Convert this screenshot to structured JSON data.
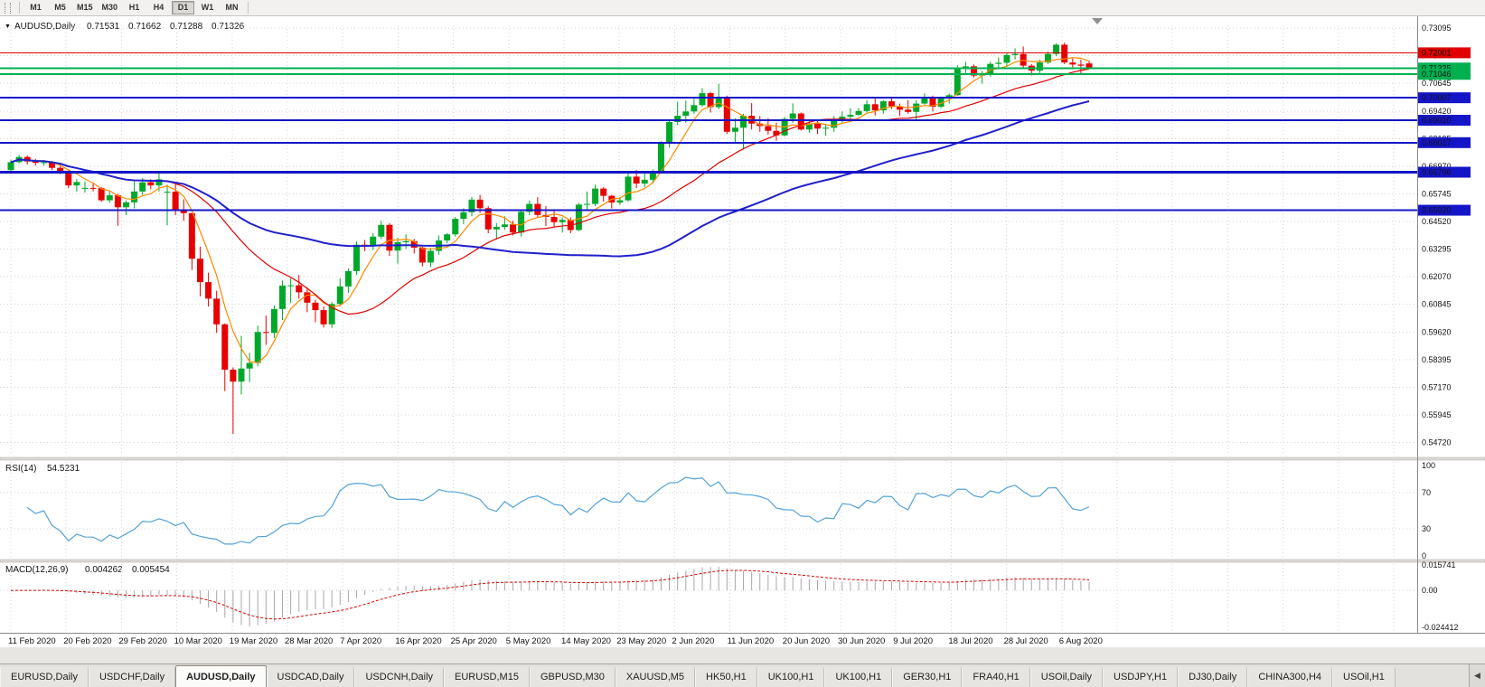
{
  "toolbar": {
    "periods": [
      "M1",
      "M5",
      "M15",
      "M30",
      "H1",
      "H4",
      "D1",
      "W1",
      "MN"
    ],
    "active_period": "D1"
  },
  "colors": {
    "bull": "#00a82a",
    "bear": "#e80000",
    "grid": "#d4d4d4",
    "rsi": "#53a2d9",
    "macd_hist": "#a8a8a8",
    "macd_signal": "#e00000"
  },
  "chart_data": {
    "type": "candlestick",
    "symbol": "AUDUSD",
    "timeframe": "Daily",
    "title": {
      "symbol": "AUDUSD,Daily",
      "open": "0.71531",
      "high": "0.71662",
      "low": "0.71288",
      "close": "0.71326"
    },
    "y_axis_labels": [
      "0.73095",
      "0.71870",
      "0.70645",
      "0.69420",
      "0.68195",
      "0.66970",
      "0.65745",
      "0.64520",
      "0.63295",
      "0.62070",
      "0.60845",
      "0.59620",
      "0.58395",
      "0.57170",
      "0.55945",
      "0.54720"
    ],
    "x_axis_labels": [
      "11 Feb 2020",
      "20 Feb 2020",
      "29 Feb 2020",
      "10 Mar 2020",
      "19 Mar 2020",
      "28 Mar 2020",
      "7 Apr 2020",
      "16 Apr 2020",
      "25 Apr 2020",
      "5 May 2020",
      "14 May 2020",
      "23 May 2020",
      "2 Jun 2020",
      "11 Jun 2020",
      "20 Jun 2020",
      "30 Jun 2020",
      "9 Jul 2020",
      "18 Jul 2020",
      "28 Jul 2020",
      "6 Aug 2020"
    ],
    "levels": [
      {
        "price": 0.72001,
        "label": "0.72001",
        "color": "#e00000",
        "width": 1
      },
      {
        "price": 0.71325,
        "label": "0.71325",
        "color": "#00b050",
        "width": 2
      },
      {
        "price": 0.71046,
        "label": "0.71046",
        "color": "#00b050",
        "width": 2
      },
      {
        "price": 0.70007,
        "label": "0.70007",
        "color": "#1515c8",
        "width": 2
      },
      {
        "price": 0.6901,
        "label": "0.69010",
        "color": "#1515c8",
        "width": 2
      },
      {
        "price": 0.68017,
        "label": "0.68017",
        "color": "#1515c8",
        "width": 2
      },
      {
        "price": 0.66706,
        "label": "0.66706",
        "color": "#1515c8",
        "width": 3
      },
      {
        "price": 0.6502,
        "label": "0.65020",
        "color": "#1515c8",
        "width": 2
      }
    ],
    "moving_averages": [
      {
        "period": 5,
        "color": "#ff8a00",
        "width": 1.2
      },
      {
        "period": 20,
        "color": "#e00000",
        "width": 1.2
      },
      {
        "period": 55,
        "color": "#2020cc",
        "width": 2
      }
    ],
    "candles": [
      [
        0.668,
        0.6725,
        0.667,
        0.6715
      ],
      [
        0.6715,
        0.6748,
        0.671,
        0.6738
      ],
      [
        0.6738,
        0.6745,
        0.6705,
        0.6718
      ],
      [
        0.6718,
        0.673,
        0.67,
        0.6712
      ],
      [
        0.6712,
        0.6725,
        0.67,
        0.6715
      ],
      [
        0.6715,
        0.672,
        0.668,
        0.669
      ],
      [
        0.669,
        0.67,
        0.6662,
        0.6673
      ],
      [
        0.6673,
        0.668,
        0.66,
        0.6612
      ],
      [
        0.6612,
        0.664,
        0.6585,
        0.6627
      ],
      [
        0.66,
        0.663,
        0.658,
        0.6601
      ],
      [
        0.6601,
        0.6625,
        0.6585,
        0.66
      ],
      [
        0.66,
        0.6605,
        0.654,
        0.6546
      ],
      [
        0.6546,
        0.659,
        0.6535,
        0.6568
      ],
      [
        0.6568,
        0.6575,
        0.6433,
        0.6515
      ],
      [
        0.6515,
        0.6545,
        0.648,
        0.6537
      ],
      [
        0.6537,
        0.663,
        0.651,
        0.6585
      ],
      [
        0.6585,
        0.6645,
        0.657,
        0.6626
      ],
      [
        0.6626,
        0.664,
        0.6595,
        0.6612
      ],
      [
        0.6612,
        0.6665,
        0.6585,
        0.6639
      ],
      [
        0.658,
        0.6615,
        0.6435,
        0.6584
      ],
      [
        0.6584,
        0.6617,
        0.648,
        0.65
      ],
      [
        0.65,
        0.655,
        0.6455,
        0.6489
      ],
      [
        0.6489,
        0.649,
        0.6237,
        0.6287
      ],
      [
        0.6287,
        0.634,
        0.612,
        0.6183
      ],
      [
        0.6183,
        0.6225,
        0.6075,
        0.611
      ],
      [
        0.611,
        0.6145,
        0.5958,
        0.5996
      ],
      [
        0.5996,
        0.6,
        0.57,
        0.5795
      ],
      [
        0.5795,
        0.5805,
        0.551,
        0.5742
      ],
      [
        0.5742,
        0.5945,
        0.5685,
        0.58
      ],
      [
        0.58,
        0.587,
        0.574,
        0.5825
      ],
      [
        0.5825,
        0.599,
        0.581,
        0.5962
      ],
      [
        0.5962,
        0.6035,
        0.5905,
        0.5958
      ],
      [
        0.5958,
        0.608,
        0.5935,
        0.6064
      ],
      [
        0.6064,
        0.619,
        0.6015,
        0.6168
      ],
      [
        0.6168,
        0.62,
        0.609,
        0.6169
      ],
      [
        0.6169,
        0.6215,
        0.611,
        0.6138
      ],
      [
        0.6138,
        0.616,
        0.605,
        0.6092
      ],
      [
        0.6092,
        0.6105,
        0.6005,
        0.6059
      ],
      [
        0.6059,
        0.6075,
        0.5982,
        0.5996
      ],
      [
        0.5996,
        0.6095,
        0.598,
        0.6086
      ],
      [
        0.6086,
        0.62,
        0.608,
        0.6164
      ],
      [
        0.6164,
        0.6245,
        0.6135,
        0.6232
      ],
      [
        0.6232,
        0.6363,
        0.6215,
        0.6349
      ],
      [
        0.6349,
        0.637,
        0.632,
        0.6348
      ],
      [
        0.6348,
        0.64,
        0.6325,
        0.6385
      ],
      [
        0.6385,
        0.6455,
        0.6375,
        0.6437
      ],
      [
        0.6437,
        0.6445,
        0.63,
        0.6323
      ],
      [
        0.6323,
        0.638,
        0.6265,
        0.636
      ],
      [
        0.636,
        0.6395,
        0.633,
        0.6365
      ],
      [
        0.6365,
        0.6375,
        0.631,
        0.6336
      ],
      [
        0.6336,
        0.634,
        0.6253,
        0.627
      ],
      [
        0.627,
        0.6335,
        0.625,
        0.6322
      ],
      [
        0.6322,
        0.639,
        0.6305,
        0.6368
      ],
      [
        0.6368,
        0.64,
        0.6355,
        0.6395
      ],
      [
        0.6395,
        0.6472,
        0.6385,
        0.6464
      ],
      [
        0.6464,
        0.651,
        0.644,
        0.6493
      ],
      [
        0.6493,
        0.656,
        0.6475,
        0.6549
      ],
      [
        0.6549,
        0.657,
        0.649,
        0.6511
      ],
      [
        0.6511,
        0.652,
        0.64,
        0.6417
      ],
      [
        0.6417,
        0.6445,
        0.6372,
        0.6428
      ],
      [
        0.6428,
        0.6475,
        0.6415,
        0.6439
      ],
      [
        0.6439,
        0.6455,
        0.639,
        0.6403
      ],
      [
        0.6403,
        0.6505,
        0.6385,
        0.6495
      ],
      [
        0.6495,
        0.6545,
        0.648,
        0.653
      ],
      [
        0.653,
        0.656,
        0.647,
        0.6481
      ],
      [
        0.6481,
        0.652,
        0.6432,
        0.6472
      ],
      [
        0.6472,
        0.65,
        0.6425,
        0.6449
      ],
      [
        0.6449,
        0.647,
        0.6403,
        0.6459
      ],
      [
        0.6459,
        0.647,
        0.64,
        0.6414
      ],
      [
        0.6414,
        0.6535,
        0.641,
        0.6527
      ],
      [
        0.6527,
        0.6585,
        0.6505,
        0.653
      ],
      [
        0.653,
        0.6616,
        0.652,
        0.6598
      ],
      [
        0.6598,
        0.6605,
        0.654,
        0.6566
      ],
      [
        0.6566,
        0.657,
        0.651,
        0.6536
      ],
      [
        0.6536,
        0.656,
        0.6525,
        0.6546
      ],
      [
        0.6546,
        0.6675,
        0.654,
        0.6651
      ],
      [
        0.6651,
        0.668,
        0.66,
        0.662
      ],
      [
        0.662,
        0.6665,
        0.6605,
        0.6637
      ],
      [
        0.6637,
        0.6683,
        0.662,
        0.6667
      ],
      [
        0.6667,
        0.6808,
        0.6665,
        0.6797
      ],
      [
        0.6797,
        0.6899,
        0.678,
        0.6893
      ],
      [
        0.6893,
        0.6983,
        0.688,
        0.6921
      ],
      [
        0.6921,
        0.6988,
        0.689,
        0.694
      ],
      [
        0.694,
        0.7,
        0.693,
        0.6968
      ],
      [
        0.6968,
        0.7043,
        0.696,
        0.7021
      ],
      [
        0.7021,
        0.7027,
        0.6935,
        0.6959
      ],
      [
        0.6959,
        0.7063,
        0.695,
        0.7001
      ],
      [
        0.7001,
        0.701,
        0.684,
        0.685
      ],
      [
        0.685,
        0.691,
        0.68,
        0.6868
      ],
      [
        0.6868,
        0.693,
        0.6777,
        0.6921
      ],
      [
        0.6921,
        0.6977,
        0.686,
        0.6886
      ],
      [
        0.6886,
        0.692,
        0.685,
        0.6875
      ],
      [
        0.6875,
        0.691,
        0.6837,
        0.6854
      ],
      [
        0.6854,
        0.689,
        0.681,
        0.6834
      ],
      [
        0.6834,
        0.6915,
        0.683,
        0.6907
      ],
      [
        0.6907,
        0.6976,
        0.689,
        0.6931
      ],
      [
        0.6931,
        0.6935,
        0.6855,
        0.686
      ],
      [
        0.686,
        0.69,
        0.6845,
        0.6886
      ],
      [
        0.6886,
        0.69,
        0.684,
        0.6864
      ],
      [
        0.6864,
        0.6885,
        0.6832,
        0.6868
      ],
      [
        0.6868,
        0.692,
        0.685,
        0.6903
      ],
      [
        0.6903,
        0.694,
        0.689,
        0.6917
      ],
      [
        0.6917,
        0.6955,
        0.6905,
        0.6925
      ],
      [
        0.6925,
        0.6955,
        0.692,
        0.6942
      ],
      [
        0.6942,
        0.699,
        0.6935,
        0.6972
      ],
      [
        0.6972,
        0.6998,
        0.6922,
        0.6945
      ],
      [
        0.6945,
        0.699,
        0.693,
        0.6985
      ],
      [
        0.6985,
        0.7,
        0.695,
        0.6963
      ],
      [
        0.6963,
        0.6975,
        0.692,
        0.6948
      ],
      [
        0.6948,
        0.699,
        0.693,
        0.6938
      ],
      [
        0.6938,
        0.699,
        0.6905,
        0.6975
      ],
      [
        0.6975,
        0.702,
        0.697,
        0.7005
      ],
      [
        0.7005,
        0.701,
        0.694,
        0.6961
      ],
      [
        0.6961,
        0.7005,
        0.6955,
        0.6998
      ],
      [
        0.6998,
        0.702,
        0.6975,
        0.7012
      ],
      [
        0.7012,
        0.7145,
        0.701,
        0.7131
      ],
      [
        0.7131,
        0.716,
        0.711,
        0.714
      ],
      [
        0.714,
        0.7148,
        0.709,
        0.7099
      ],
      [
        0.7099,
        0.712,
        0.7063,
        0.7105
      ],
      [
        0.7105,
        0.716,
        0.7095,
        0.7151
      ],
      [
        0.7151,
        0.718,
        0.7135,
        0.7156
      ],
      [
        0.7156,
        0.7199,
        0.714,
        0.719
      ],
      [
        0.719,
        0.722,
        0.717,
        0.7195
      ],
      [
        0.7195,
        0.7228,
        0.713,
        0.7143
      ],
      [
        0.7143,
        0.715,
        0.71,
        0.7121
      ],
      [
        0.7121,
        0.717,
        0.711,
        0.7157
      ],
      [
        0.7157,
        0.7205,
        0.715,
        0.7195
      ],
      [
        0.7195,
        0.7243,
        0.7185,
        0.7236
      ],
      [
        0.7236,
        0.7245,
        0.715,
        0.7157
      ],
      [
        0.7157,
        0.7175,
        0.7135,
        0.7148
      ],
      [
        0.7148,
        0.717,
        0.7108,
        0.7143
      ],
      [
        0.7153,
        0.7166,
        0.7129,
        0.7133
      ]
    ],
    "rsi": {
      "label": "RSI(14)",
      "value": "54.5231",
      "axis_labels": [
        "100",
        "70",
        "30",
        "0"
      ],
      "level_lines": [
        70,
        30
      ]
    },
    "macd": {
      "label": "MACD(12,26,9)",
      "value_main": "0.004262",
      "value_signal": "0.005454",
      "axis_labels": [
        "0.015741",
        "0.00",
        "-0.024412"
      ]
    }
  },
  "tabs": {
    "items": [
      "EURUSD,Daily",
      "USDCHF,Daily",
      "AUDUSD,Daily",
      "USDCAD,Daily",
      "USDCNH,Daily",
      "EURUSD,M15",
      "GBPUSD,M30",
      "XAUUSD,M5",
      "HK50,H1",
      "UK100,H1",
      "UK100,H1",
      "GER30,H1",
      "FRA40,H1",
      "USOil,Daily",
      "USDJPY,H1",
      "DJ30,Daily",
      "CHINA300,H4",
      "USOil,H1"
    ],
    "active": "AUDUSD,Daily"
  }
}
